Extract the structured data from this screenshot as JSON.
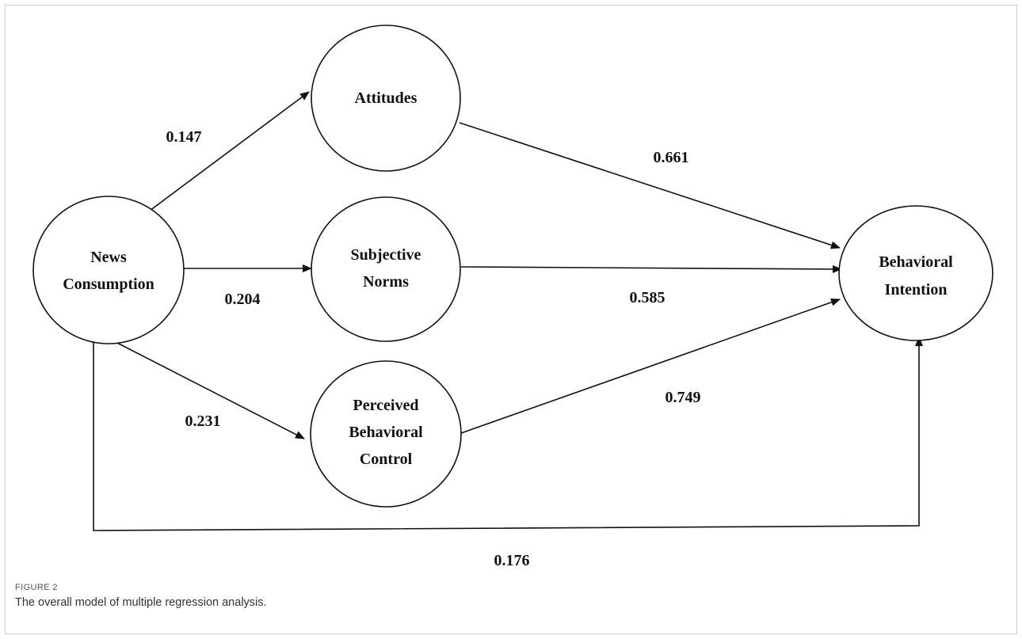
{
  "nodes": {
    "news": [
      "News",
      "Consumption"
    ],
    "attitudes": [
      "Attitudes"
    ],
    "norms": [
      "Subjective",
      "Norms"
    ],
    "pbc": [
      "Perceived",
      "Behavioral",
      "Control"
    ],
    "intention": [
      "Behavioral",
      "Intention"
    ]
  },
  "paths": {
    "news_attitudes": "0.147",
    "news_norms": "0.204",
    "news_pbc": "0.231",
    "attitudes_intention": "0.661",
    "norms_intention": "0.585",
    "pbc_intention": "0.749",
    "news_intention": "0.176"
  },
  "caption": {
    "label": "FIGURE 2",
    "text": "The overall model of multiple regression analysis."
  }
}
